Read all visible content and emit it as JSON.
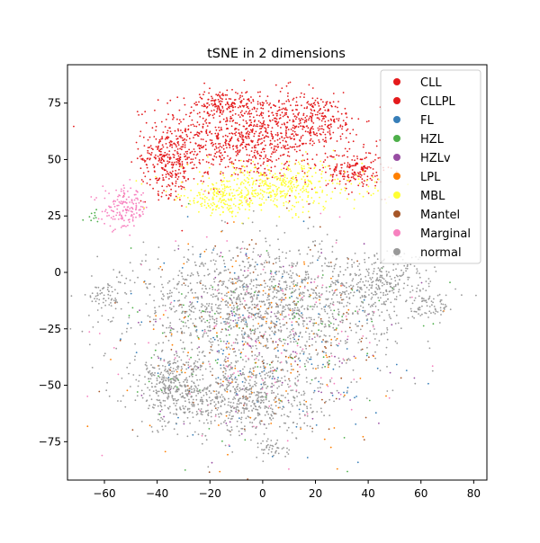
{
  "chart_data": {
    "type": "scatter",
    "title": "tSNE in 2 dimensions",
    "xlabel": "",
    "ylabel": "",
    "xlim": [
      -74,
      85
    ],
    "ylim": [
      -92,
      92
    ],
    "xticks": [
      -60,
      -40,
      -20,
      0,
      20,
      40,
      60,
      80
    ],
    "yticks": [
      -75,
      -50,
      -25,
      0,
      25,
      50,
      75
    ],
    "xtick_labels": [
      "−60",
      "−40",
      "−20",
      "0",
      "20",
      "40",
      "60",
      "80"
    ],
    "ytick_labels": [
      "−75",
      "−50",
      "−25",
      "0",
      "25",
      "50",
      "75"
    ],
    "grid": false,
    "legend_position": "top-right",
    "series": [
      {
        "name": "CLL",
        "color": "#e41a1c",
        "regions": [
          [
            -5,
            60,
            30,
            18,
            900
          ],
          [
            20,
            68,
            16,
            10,
            200
          ]
        ]
      },
      {
        "name": "CLLPL",
        "color": "#e41a1c",
        "regions": [
          [
            -35,
            50,
            10,
            14,
            300
          ],
          [
            35,
            45,
            10,
            8,
            180
          ],
          [
            -15,
            75,
            10,
            5,
            120
          ]
        ]
      },
      {
        "name": "FL",
        "color": "#377eb8",
        "regions": [
          [
            0,
            -30,
            45,
            40,
            140
          ]
        ]
      },
      {
        "name": "HZL",
        "color": "#4daf4a",
        "regions": [
          [
            0,
            -30,
            45,
            40,
            120
          ],
          [
            -63,
            25,
            4,
            4,
            10
          ]
        ]
      },
      {
        "name": "HZLv",
        "color": "#984ea3",
        "regions": [
          [
            0,
            -30,
            45,
            40,
            100
          ]
        ]
      },
      {
        "name": "LPL",
        "color": "#ff7f00",
        "regions": [
          [
            0,
            -30,
            45,
            40,
            140
          ]
        ]
      },
      {
        "name": "MBL",
        "color": "#ffff33",
        "regions": [
          [
            5,
            38,
            30,
            10,
            450
          ],
          [
            -15,
            32,
            15,
            6,
            150
          ]
        ]
      },
      {
        "name": "Mantel",
        "color": "#a65628",
        "regions": [
          [
            0,
            -30,
            45,
            40,
            140
          ]
        ]
      },
      {
        "name": "Marginal",
        "color": "#f781bf",
        "regions": [
          [
            -52,
            28,
            8,
            8,
            160
          ],
          [
            0,
            -30,
            45,
            40,
            140
          ]
        ]
      },
      {
        "name": "normal",
        "color": "#999999",
        "regions": [
          [
            0,
            -15,
            45,
            25,
            1400
          ],
          [
            -10,
            -55,
            28,
            16,
            700
          ],
          [
            -35,
            -50,
            12,
            12,
            250
          ],
          [
            45,
            -5,
            18,
            12,
            250
          ],
          [
            -60,
            -10,
            6,
            6,
            60
          ],
          [
            65,
            -15,
            7,
            6,
            60
          ],
          [
            5,
            -78,
            6,
            4,
            40
          ]
        ]
      }
    ]
  }
}
